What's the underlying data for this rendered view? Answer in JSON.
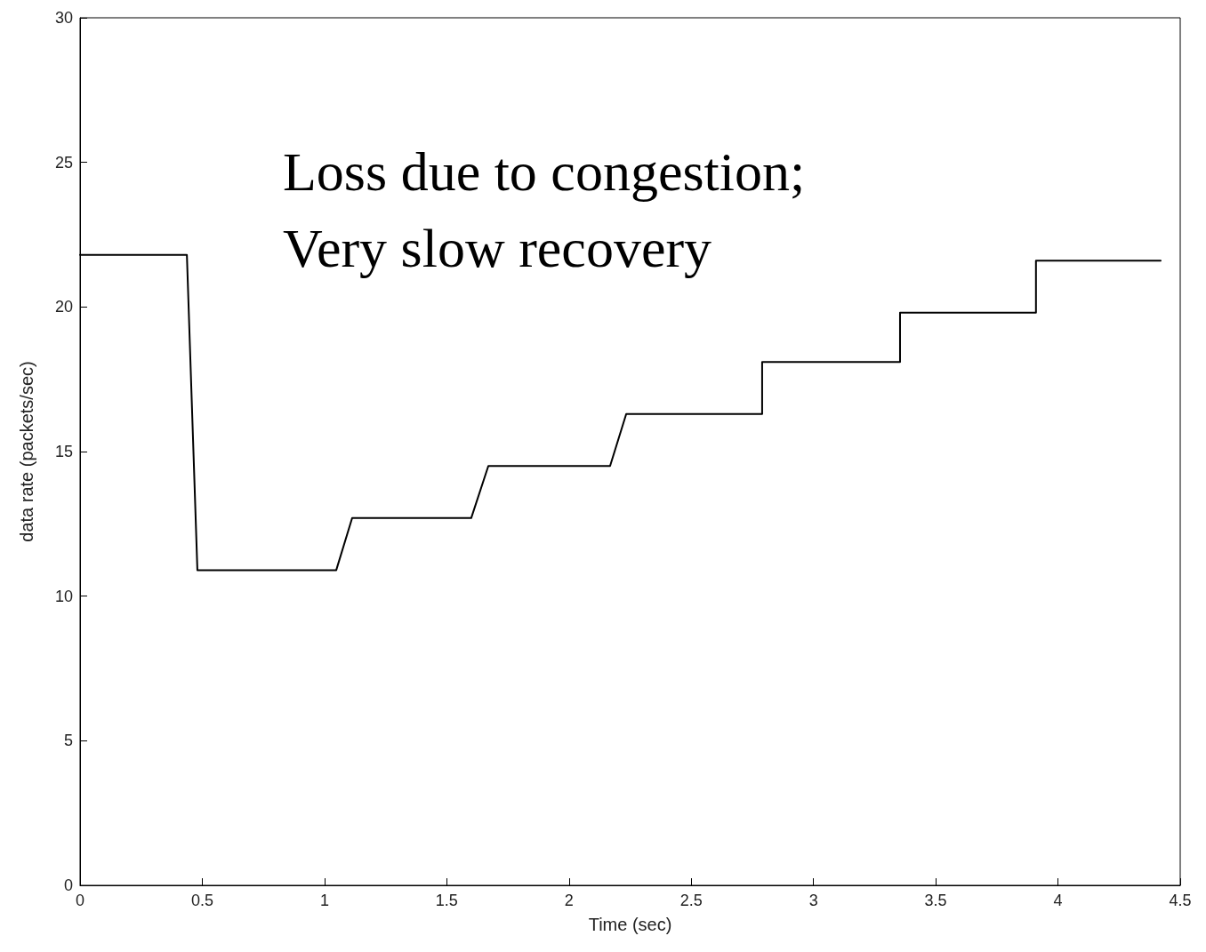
{
  "chart_data": {
    "type": "line",
    "xlabel": "Time (sec)",
    "ylabel": "data rate (packets/sec)",
    "annotations": [
      "Loss due to congestion;\nVery slow recovery"
    ],
    "x": [
      0,
      0.437,
      0.48,
      1.048,
      1.113,
      1.6,
      1.67,
      2.168,
      2.234,
      2.79,
      2.79,
      3.354,
      3.354,
      3.91,
      3.91,
      4.42
    ],
    "series": [
      {
        "color": "#000000",
        "values": [
          21.8,
          21.8,
          10.9,
          10.9,
          12.7,
          12.7,
          14.5,
          14.5,
          16.3,
          16.3,
          18.1,
          18.1,
          19.8,
          19.8,
          21.6,
          21.6
        ]
      }
    ],
    "xlim": [
      0,
      4.5
    ],
    "xticks": [
      0,
      0.5,
      1,
      1.5,
      2,
      2.5,
      3,
      3.5,
      4,
      4.5
    ],
    "ylim": [
      0,
      30
    ],
    "yticks": [
      0,
      5,
      10,
      15,
      20,
      25,
      30
    ],
    "marker": "none",
    "line_style": "solid"
  }
}
